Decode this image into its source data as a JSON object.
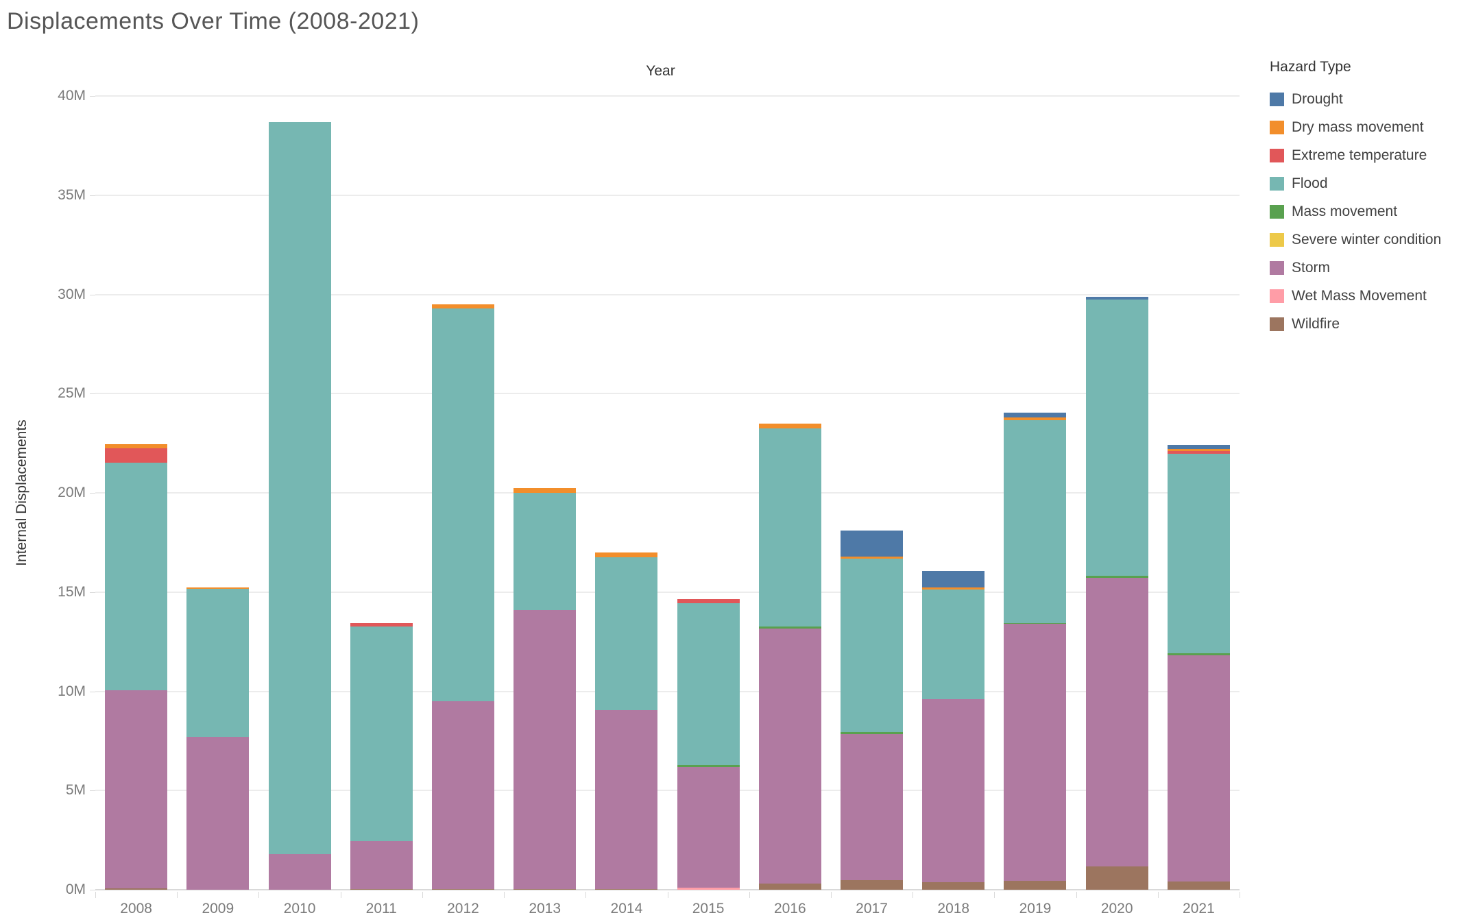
{
  "title": "Displacements Over Time (2008-2021)",
  "axes": {
    "x_title": "Year",
    "y_title": "Internal Displacements"
  },
  "legend": {
    "title": "Hazard Type",
    "items": [
      {
        "label": "Drought",
        "color": "#4e79a7"
      },
      {
        "label": "Dry mass movement",
        "color": "#f28e2b"
      },
      {
        "label": "Extreme temperature",
        "color": "#e15759"
      },
      {
        "label": "Flood",
        "color": "#76b7b2"
      },
      {
        "label": "Mass movement",
        "color": "#59a14f"
      },
      {
        "label": "Severe winter condition",
        "color": "#edc949"
      },
      {
        "label": "Storm",
        "color": "#b07aa1"
      },
      {
        "label": "Wet Mass Movement",
        "color": "#ff9da7"
      },
      {
        "label": "Wildfire",
        "color": "#9c755f"
      }
    ]
  },
  "chart_data": {
    "type": "bar",
    "stacked": true,
    "title": "Displacements Over Time (2008-2021)",
    "xlabel": "Year",
    "ylabel": "Internal Displacements",
    "units": "millions of internal displacements",
    "ylim": [
      0,
      40
    ],
    "y_ticks": [
      {
        "value": 0,
        "label": "0M"
      },
      {
        "value": 5,
        "label": "5M"
      },
      {
        "value": 10,
        "label": "10M"
      },
      {
        "value": 15,
        "label": "15M"
      },
      {
        "value": 20,
        "label": "20M"
      },
      {
        "value": 25,
        "label": "25M"
      },
      {
        "value": 30,
        "label": "30M"
      },
      {
        "value": 35,
        "label": "35M"
      },
      {
        "value": 40,
        "label": "40M"
      }
    ],
    "grid": true,
    "legend_position": "right",
    "categories": [
      "2008",
      "2009",
      "2010",
      "2011",
      "2012",
      "2013",
      "2014",
      "2015",
      "2016",
      "2017",
      "2018",
      "2019",
      "2020",
      "2021"
    ],
    "stack_order_note": "series listed bottom-to-top of the stack",
    "series": [
      {
        "name": "Wildfire",
        "color": "#9c755f",
        "values": [
          0.06,
          0,
          0,
          0.05,
          0.05,
          0.05,
          0.05,
          0,
          0.3,
          0.48,
          0.37,
          0.45,
          1.18,
          0.42
        ]
      },
      {
        "name": "Wet Mass Movement",
        "color": "#ff9da7",
        "values": [
          0,
          0,
          0,
          0,
          0,
          0,
          0,
          0.1,
          0,
          0,
          0,
          0,
          0,
          0
        ]
      },
      {
        "name": "Storm",
        "color": "#b07aa1",
        "values": [
          10.0,
          7.7,
          1.8,
          2.4,
          9.45,
          14.05,
          9.0,
          6.1,
          12.85,
          7.37,
          9.25,
          12.95,
          14.55,
          11.4
        ]
      },
      {
        "name": "Severe winter condition",
        "color": "#edc949",
        "values": [
          0,
          0,
          0,
          0,
          0,
          0,
          0,
          0,
          0,
          0,
          0,
          0,
          0,
          0
        ]
      },
      {
        "name": "Mass movement",
        "color": "#59a14f",
        "values": [
          0,
          0,
          0,
          0,
          0,
          0,
          0,
          0.1,
          0.1,
          0.09,
          0,
          0.05,
          0.1,
          0.1
        ]
      },
      {
        "name": "Flood",
        "color": "#76b7b2",
        "values": [
          11.45,
          7.45,
          36.9,
          10.8,
          19.8,
          5.9,
          7.7,
          8.15,
          10.0,
          8.73,
          5.5,
          10.2,
          13.9,
          10.05
        ]
      },
      {
        "name": "Extreme temperature",
        "color": "#e15759",
        "values": [
          0.75,
          0,
          0,
          0.2,
          0,
          0,
          0,
          0.2,
          0,
          0,
          0,
          0,
          0,
          0.15
        ]
      },
      {
        "name": "Dry mass movement",
        "color": "#f28e2b",
        "values": [
          0.2,
          0.1,
          0,
          0,
          0.2,
          0.25,
          0.25,
          0,
          0.25,
          0.13,
          0.1,
          0.15,
          0,
          0.1
        ]
      },
      {
        "name": "Drought",
        "color": "#4e79a7",
        "values": [
          0,
          0,
          0,
          0,
          0,
          0,
          0,
          0,
          0,
          1.3,
          0.85,
          0.25,
          0.15,
          0.2
        ]
      }
    ]
  }
}
